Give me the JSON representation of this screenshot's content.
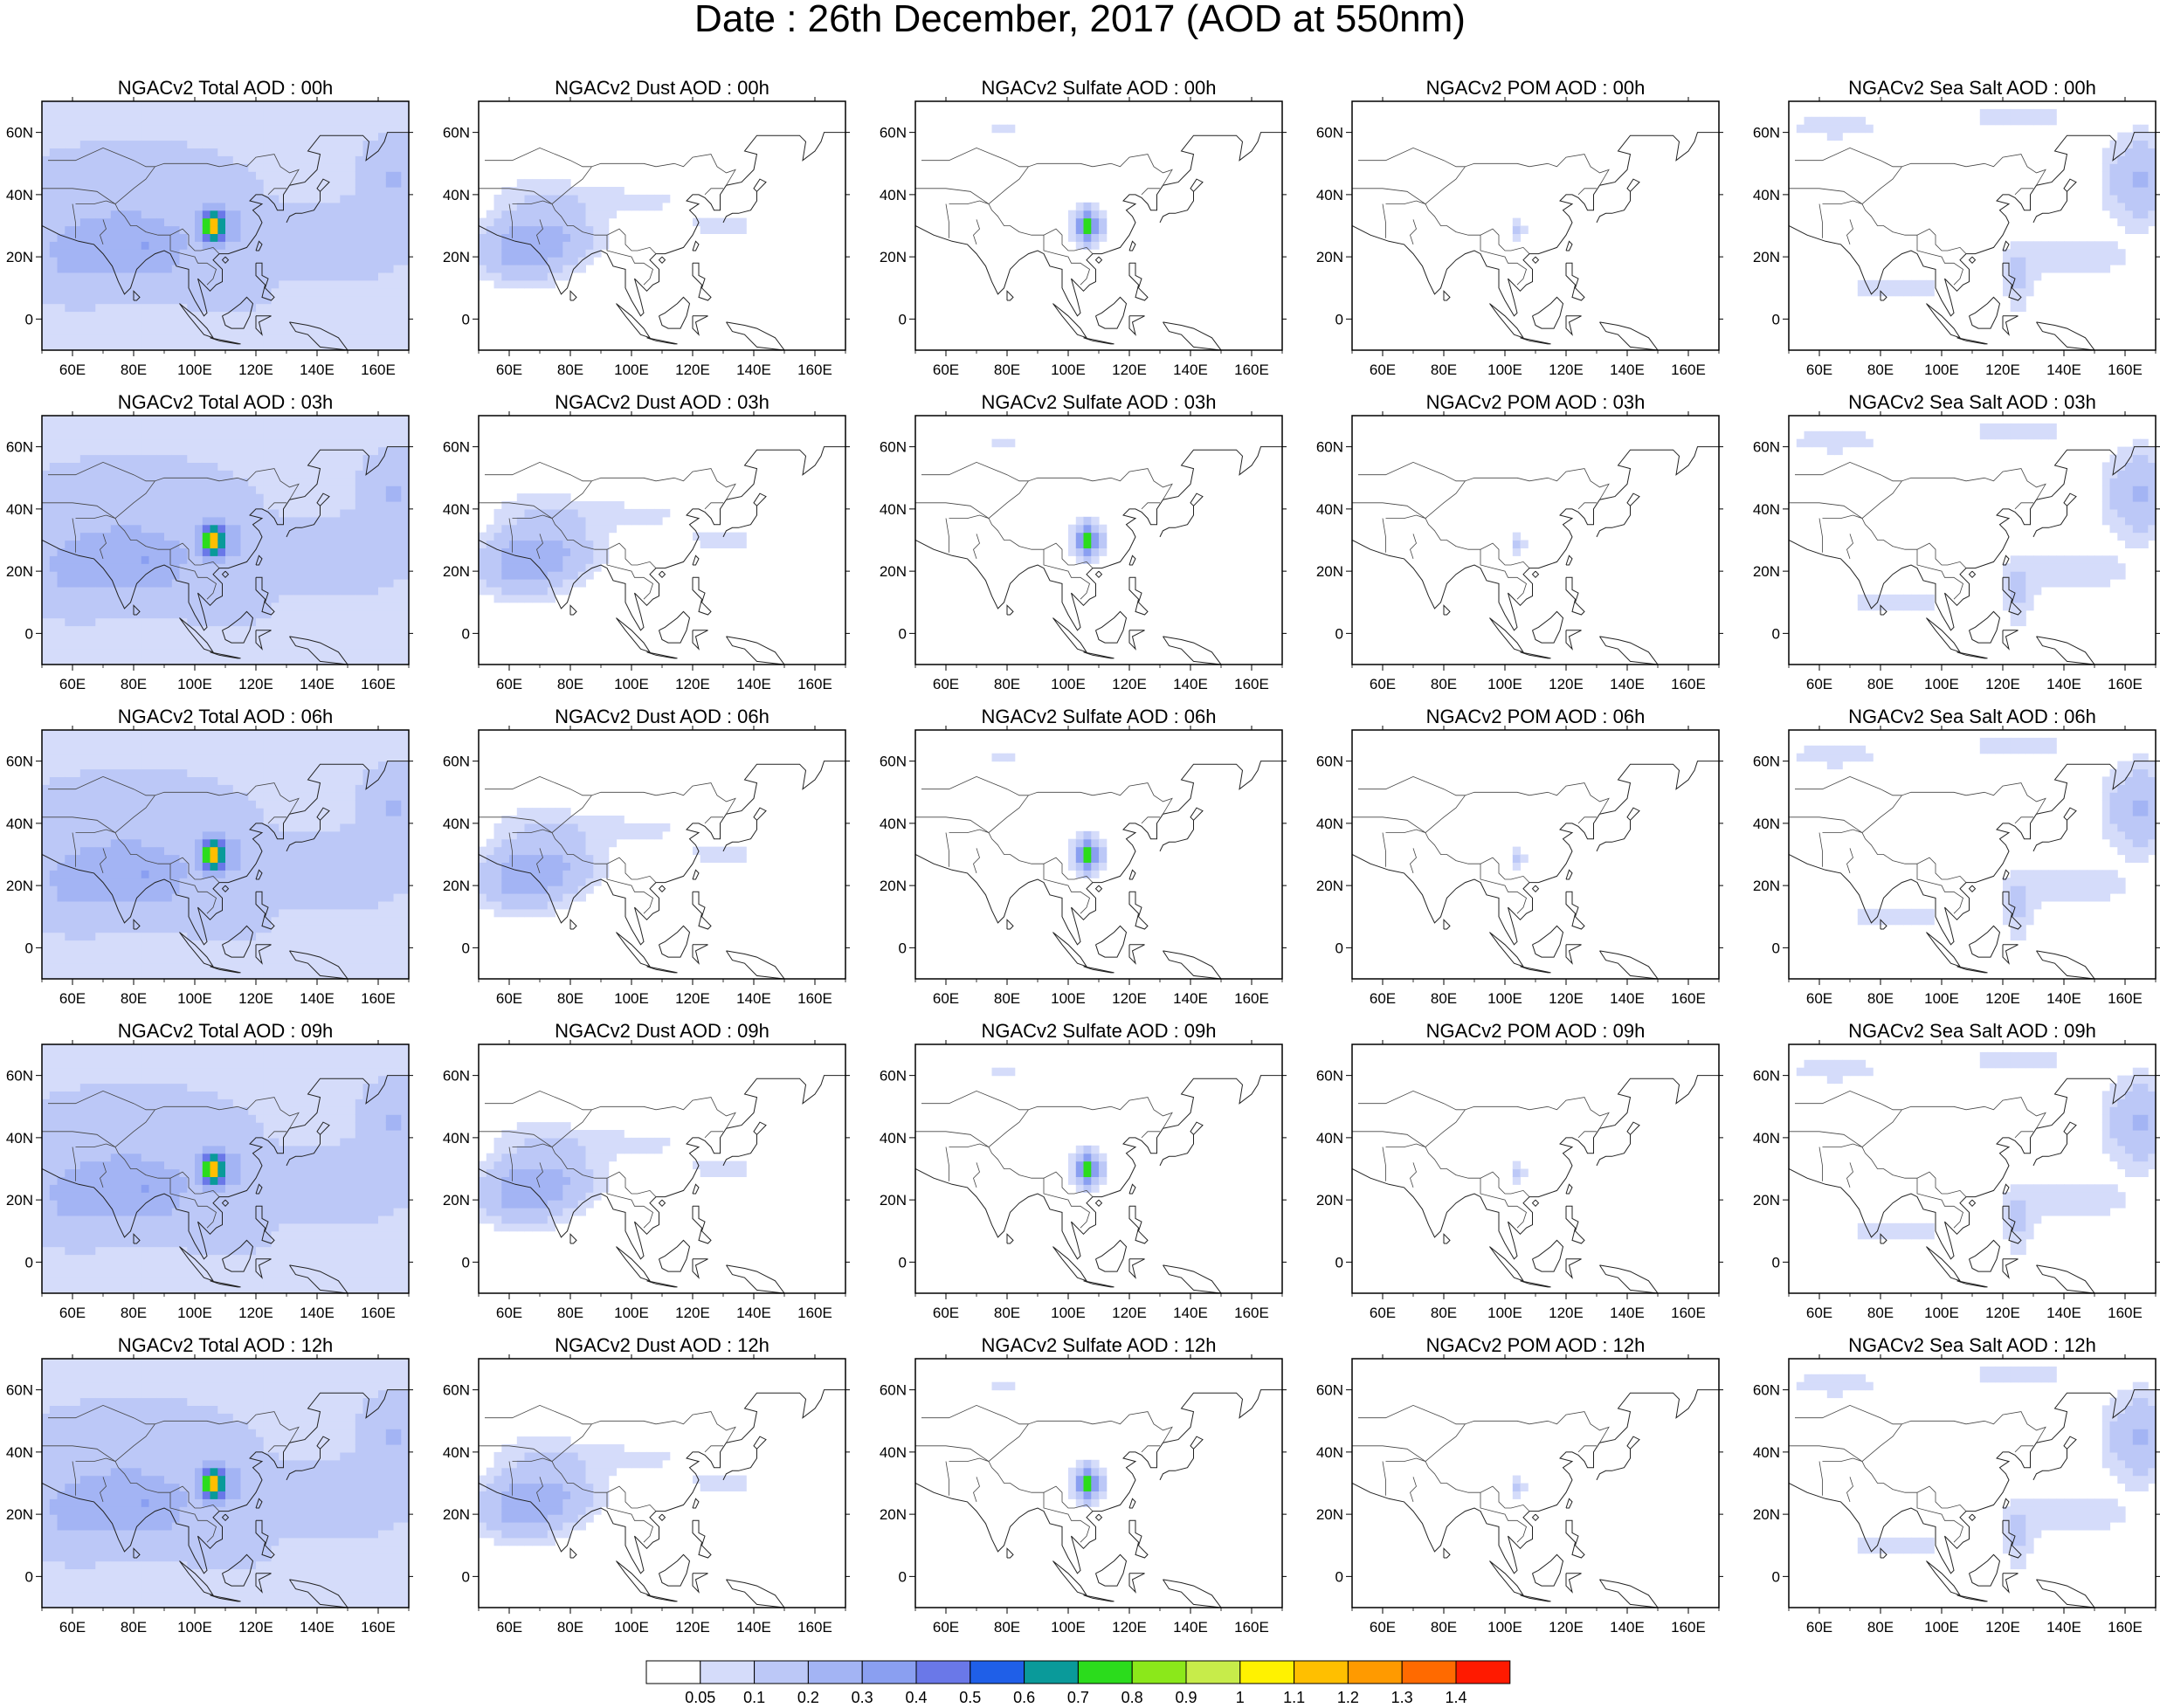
{
  "title": "Date : 26th December, 2017 (AOD at 550nm)",
  "columns": [
    "total",
    "dust",
    "sulfate",
    "pom",
    "seasalt"
  ],
  "hours": [
    "00h",
    "03h",
    "06h",
    "09h",
    "12h"
  ],
  "panel_titles": [
    [
      "NGACv2 Total AOD : 00h",
      "NGACv2 Dust AOD : 00h",
      "NGACv2 Sulfate AOD : 00h",
      "NGACv2 POM AOD : 00h",
      "NGACv2 Sea Salt AOD : 00h"
    ],
    [
      "NGACv2 Total AOD : 03h",
      "NGACv2 Dust AOD : 03h",
      "NGACv2 Sulfate AOD : 03h",
      "NGACv2 POM AOD : 03h",
      "NGACv2 Sea Salt AOD : 03h"
    ],
    [
      "NGACv2 Total AOD : 06h",
      "NGACv2 Dust AOD : 06h",
      "NGACv2 Sulfate AOD : 06h",
      "NGACv2 POM AOD : 06h",
      "NGACv2 Sea Salt AOD : 06h"
    ],
    [
      "NGACv2 Total AOD : 09h",
      "NGACv2 Dust AOD : 09h",
      "NGACv2 Sulfate AOD : 09h",
      "NGACv2 POM AOD : 09h",
      "NGACv2 Sea Salt  AOD : 09h"
    ],
    [
      "NGACv2 Total AOD  : 12h",
      "NGACv2 Dust AOD : 12h",
      "NGACv2 Sulfate AOD : 12h",
      "NGACv2 POM  AOD : 12h",
      "NGACv2 Sea Salt  AOD : 12h"
    ]
  ],
  "map_extent": {
    "lon": [
      50,
      170
    ],
    "lat": [
      -10,
      70
    ]
  },
  "lon_ticks": [
    60,
    80,
    100,
    120,
    140,
    160
  ],
  "lon_tick_labels": [
    "60E",
    "80E",
    "100E",
    "120E",
    "140E",
    "160E"
  ],
  "lat_ticks": [
    0,
    20,
    40,
    60
  ],
  "lat_tick_labels": [
    "0",
    "20N",
    "40N",
    "60N"
  ],
  "colorbar": {
    "levels": [
      "0.05",
      "0.1",
      "0.2",
      "0.3",
      "0.4",
      "0.5",
      "0.6",
      "0.7",
      "0.8",
      "0.9",
      "1",
      "1.1",
      "1.2",
      "1.3",
      "1.4"
    ],
    "colors": [
      "#ffffff",
      "#d5dcfa",
      "#bcc8f7",
      "#a3b4f4",
      "#8a9ff1",
      "#6a78e8",
      "#1f5fe8",
      "#0a9a9a",
      "#2bdc1c",
      "#8be81a",
      "#c7ec4a",
      "#fff200",
      "#ffbf00",
      "#ff9a00",
      "#ff6a00",
      "#ff1a00"
    ]
  },
  "approx_field_levels": {
    "total": {
      "background": 0.1,
      "land_south_asia": 0.2,
      "sichuan_peak": 1.1
    },
    "dust": {
      "background": 0.05,
      "india_arabia": 0.2
    },
    "sulfate": {
      "background": 0.05,
      "east_china": 0.3,
      "sichuan_peak": 0.9
    },
    "pom": {
      "background": 0.05,
      "sichuan": 0.1
    },
    "seasalt": {
      "background": 0.05,
      "pacific_north": 0.2
    }
  }
}
